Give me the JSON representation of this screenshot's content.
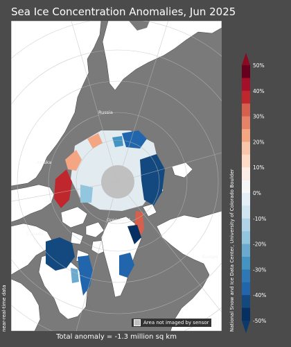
{
  "title": "Sea Ice Concentration Anomalies, Jun 2025",
  "regions": {
    "russia": "Russia",
    "alaska": "Alaska",
    "canada": "Canada",
    "greenland": "Greenland",
    "europe": "Europe"
  },
  "legend": {
    "label": "Area not imaged by sensor",
    "swatch_color": "#c0c0c0"
  },
  "side_note": "near-real-time data",
  "credit": "National Snow and Ice Data Center, University of Colorado Boulder",
  "total_anomaly": "Total anomaly = -1.3 million sq km",
  "colorbar": {
    "tick_labels": [
      "50%",
      "40%",
      "30%",
      "20%",
      "10%",
      "0%",
      "-10%",
      "-20%",
      "-30%",
      "-40%",
      "-50%"
    ],
    "colors": [
      "#67001f",
      "#a50f2a",
      "#c0272d",
      "#d6604d",
      "#e58267",
      "#f4a582",
      "#f9c6ac",
      "#fddbc7",
      "#fbeee6",
      "#f7f7f7",
      "#e3eef6",
      "#d1e5f0",
      "#b0d3e8",
      "#92c5de",
      "#6aaacf",
      "#4393c3",
      "#2f78b6",
      "#2166ac",
      "#13497f",
      "#053061"
    ],
    "over_color": "#8b0a1f",
    "under_color": "#0b3a6b"
  },
  "colors": {
    "background": "#4b4b4b",
    "ocean": "#7a7a7a",
    "land": "#ffffff",
    "pole_hole": "#c0c0c0"
  }
}
